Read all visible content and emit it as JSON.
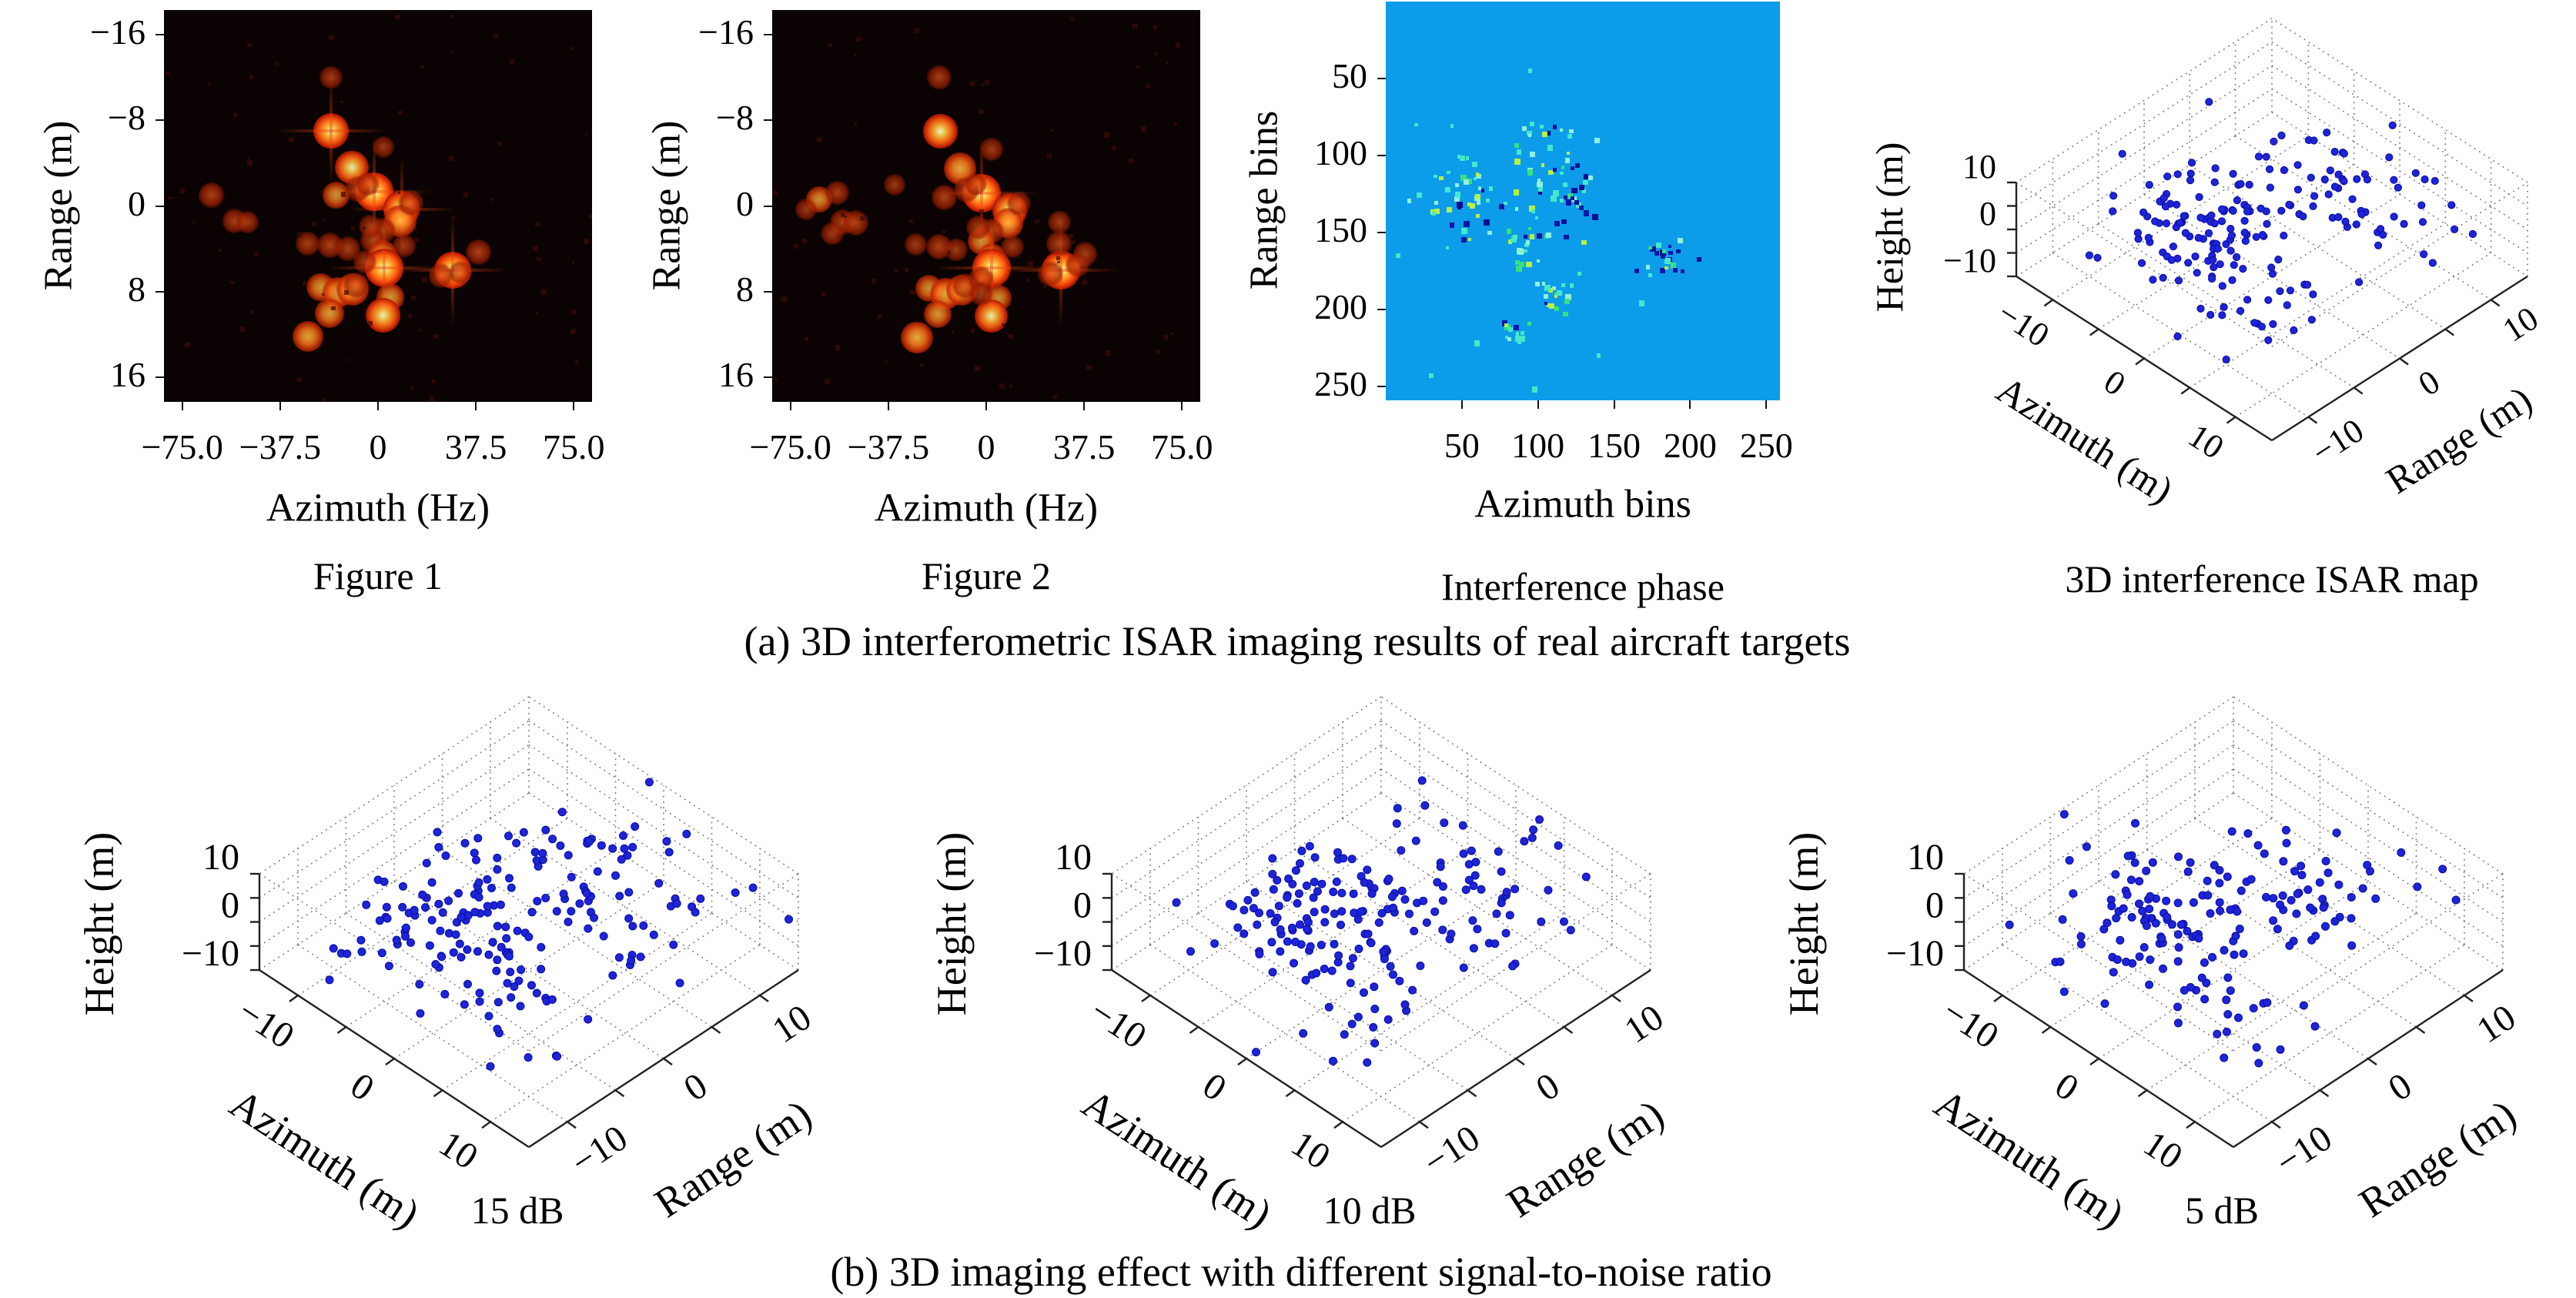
{
  "captions": {
    "a": "(a) 3D interferometric ISAR imaging results of real aircraft targets",
    "b": "(b) 3D imaging effect with different signal-to-noise ratio"
  },
  "chart_data": [
    {
      "id": "fig1",
      "type": "heatmap",
      "title": "Figure 1",
      "xlabel": "Azimuth (Hz)",
      "ylabel": "Range (m)",
      "xticks": [
        "−75.0",
        "−37.5",
        "0",
        "37.5",
        "75.0"
      ],
      "xtick_values": [
        -75,
        -37.5,
        0,
        37.5,
        75
      ],
      "yticks": [
        "−16",
        "−8",
        "0",
        "8",
        "16"
      ],
      "ytick_values": [
        -16,
        -8,
        0,
        8,
        16
      ],
      "xlim": [
        -82,
        82
      ],
      "ylim": [
        -18.3,
        18.3
      ],
      "colormap": "hot",
      "background": "#0b0303",
      "noise_seed": 3,
      "spots": [
        [
          -18,
          -7,
          0.9
        ],
        [
          -10,
          -3.6,
          0.8
        ],
        [
          -1.5,
          -1.3,
          1
        ],
        [
          -16,
          -1,
          0.55
        ],
        [
          9,
          0.3,
          0.9
        ],
        [
          8.6,
          1.4,
          0.75
        ],
        [
          1.8,
          2.3,
          0.5
        ],
        [
          -2,
          3.2,
          0.5
        ],
        [
          1.8,
          4.6,
          0.65
        ],
        [
          2.4,
          5.8,
          1
        ],
        [
          28.6,
          6,
          0.95
        ],
        [
          38.6,
          4.3,
          0.5
        ],
        [
          -27,
          3.5,
          0.45
        ],
        [
          -18.3,
          3.7,
          0.5
        ],
        [
          -22,
          7.6,
          0.6
        ],
        [
          -15.4,
          8.1,
          0.7
        ],
        [
          -9.7,
          7.8,
          0.75
        ],
        [
          4.7,
          8.5,
          0.6
        ],
        [
          -18.6,
          10,
          0.65
        ],
        [
          1.8,
          10.2,
          0.85
        ],
        [
          -26.8,
          12.2,
          0.7
        ],
        [
          -64,
          -1,
          0.5
        ],
        [
          -55,
          1.4,
          0.45
        ],
        [
          -50,
          1.5,
          0.4
        ],
        [
          -7.7,
          -1.6,
          0.5
        ],
        [
          -3.9,
          -2,
          0.45
        ],
        [
          12.4,
          -0.3,
          0.5
        ],
        [
          -3,
          1.9,
          0.4
        ],
        [
          -8.3,
          7.4,
          0.5
        ],
        [
          -18,
          -12,
          0.4
        ],
        [
          -11.5,
          4,
          0.45
        ],
        [
          10,
          3.7,
          0.4
        ],
        [
          2,
          -5.5,
          0.35
        ],
        [
          -5,
          5.2,
          0.4
        ],
        [
          24,
          6.5,
          0.45
        ],
        [
          31.5,
          6.2,
          0.4
        ]
      ]
    },
    {
      "id": "fig2",
      "type": "heatmap",
      "title": "Figure 2",
      "xlabel": "Azimuth (Hz)",
      "ylabel": "Range (m)",
      "xticks": [
        "−75.0",
        "−37.5",
        "0",
        "37.5",
        "75.0"
      ],
      "xtick_values": [
        -75,
        -37.5,
        0,
        37.5,
        75
      ],
      "yticks": [
        "−16",
        "−8",
        "0",
        "8",
        "16"
      ],
      "ytick_values": [
        -16,
        -8,
        0,
        8,
        16
      ],
      "xlim": [
        -82,
        82
      ],
      "ylim": [
        -18.3,
        18.3
      ],
      "colormap": "hot",
      "background": "#0b0303",
      "noise_seed": 9,
      "spots": [
        [
          -17.5,
          -7,
          0.85
        ],
        [
          -10,
          -3.5,
          0.75
        ],
        [
          -1.8,
          -1.2,
          1
        ],
        [
          -16,
          -0.8,
          0.5
        ],
        [
          9,
          0.4,
          0.85
        ],
        [
          8.4,
          1.6,
          0.7
        ],
        [
          2,
          2.4,
          0.5
        ],
        [
          -2,
          3.3,
          0.55
        ],
        [
          2,
          4.8,
          0.6
        ],
        [
          2.2,
          5.8,
          1
        ],
        [
          28.5,
          6,
          1
        ],
        [
          38,
          4.5,
          0.45
        ],
        [
          -27,
          3.6,
          0.4
        ],
        [
          -18,
          3.8,
          0.5
        ],
        [
          -22,
          7.7,
          0.55
        ],
        [
          -15.5,
          8.2,
          0.75
        ],
        [
          -9.5,
          7.9,
          0.7
        ],
        [
          4.5,
          8.6,
          0.55
        ],
        [
          -18.5,
          10.1,
          0.6
        ],
        [
          2,
          10.3,
          0.8
        ],
        [
          -26.5,
          12.3,
          0.75
        ],
        [
          -64,
          -0.6,
          0.55
        ],
        [
          -57,
          -1.2,
          0.45
        ],
        [
          -55,
          1.5,
          0.5
        ],
        [
          -50,
          1.6,
          0.5
        ],
        [
          -69,
          0.3,
          0.35
        ],
        [
          -59,
          2.6,
          0.4
        ],
        [
          -7.5,
          -1.5,
          0.5
        ],
        [
          -4,
          -2,
          0.4
        ],
        [
          12.5,
          -0.2,
          0.45
        ],
        [
          -3,
          2,
          0.45
        ],
        [
          -8,
          7.5,
          0.5
        ],
        [
          -18,
          -12,
          0.45
        ],
        [
          -11.5,
          4.1,
          0.4
        ],
        [
          10,
          3.8,
          0.4
        ],
        [
          2,
          -5.3,
          0.4
        ],
        [
          28,
          3.5,
          0.5
        ],
        [
          28,
          1.5,
          0.4
        ],
        [
          35,
          5.5,
          0.45
        ],
        [
          -2,
          6.8,
          0.5
        ],
        [
          -2,
          8.2,
          0.45
        ],
        [
          -35,
          -2,
          0.35
        ],
        [
          24.5,
          6.3,
          0.5
        ]
      ]
    },
    {
      "id": "phase",
      "type": "heatmap",
      "title": "Interference phase",
      "xlabel": "Azimuth bins",
      "ylabel": "Range bins",
      "xticks": [
        "50",
        "100",
        "150",
        "200",
        "250"
      ],
      "xtick_values": [
        50,
        100,
        150,
        200,
        250
      ],
      "yticks": [
        "50",
        "100",
        "150",
        "200",
        "250"
      ],
      "ytick_values": [
        50,
        100,
        150,
        200,
        250
      ],
      "xlim": [
        0,
        259
      ],
      "ylim": [
        0,
        259
      ],
      "background": "#0d9ce9",
      "palette": [
        "#45e8c8",
        "#8ef2da",
        "#b6f046",
        "#38e07e",
        "#0a16a6",
        "#071090"
      ],
      "weights": [
        0.38,
        0.2,
        0.18,
        0.12,
        0.07,
        0.05
      ],
      "dark_weights": [
        0.1,
        0.05,
        0.05,
        0.05,
        0.4,
        0.35
      ],
      "seed": 13,
      "clusters": [
        [
          50,
          125,
          14,
          16,
          48,
          0
        ],
        [
          103,
          84,
          7,
          4,
          10,
          0
        ],
        [
          108,
          115,
          12,
          14,
          36,
          0
        ],
        [
          92,
          160,
          9,
          10,
          26,
          0
        ],
        [
          112,
          188,
          9,
          9,
          20,
          0
        ],
        [
          85,
          214,
          7,
          4,
          14,
          0
        ],
        [
          182,
          162,
          11,
          7,
          22,
          1
        ],
        [
          128,
          128,
          6,
          14,
          16,
          1
        ]
      ],
      "singles": [
        [
          95,
          45
        ],
        [
          8,
          165
        ],
        [
          30,
          243
        ],
        [
          98,
          252
        ],
        [
          140,
          230
        ],
        [
          20,
          80
        ],
        [
          60,
          222
        ],
        [
          168,
          196
        ]
      ]
    },
    {
      "id": "iso3d",
      "type": "scatter3d",
      "title": "3D interference ISAR map",
      "xlabel": "Azimuth (m)",
      "ylabel": "Range (m)",
      "zlabel": "Height (m)",
      "xticks": [
        "−10",
        "0",
        "10"
      ],
      "yticks": [
        "−10",
        "0",
        "10"
      ],
      "zticks": [
        "10",
        "0",
        "−10"
      ],
      "tick_values": [
        -10,
        0,
        10
      ],
      "grid_values": [
        -10,
        -5,
        0,
        5,
        10
      ],
      "xlim": [
        -14,
        14
      ],
      "ylim": [
        -14,
        14
      ],
      "zlim": [
        -10,
        10
      ],
      "point_color": "#1e24d8",
      "seed": 7,
      "clusters": [
        [
          -3,
          -2,
          1,
          3.2,
          3.8,
          2.8,
          64
        ],
        [
          3,
          6.5,
          2,
          3.8,
          3.8,
          2.6,
          46
        ],
        [
          -7,
          -4,
          -2.5,
          2.6,
          2.8,
          2.6,
          28
        ],
        [
          4,
          -5.5,
          -3.5,
          3.4,
          2.6,
          2.2,
          26
        ],
        [
          0,
          1,
          0,
          7.5,
          6.5,
          4.5,
          30
        ]
      ],
      "outliers": [
        [
          -11,
          -9,
          -8
        ],
        [
          -10.5,
          -8.6,
          -8.4
        ],
        [
          5,
          -10,
          -9
        ],
        [
          12,
          8,
          5
        ],
        [
          13,
          9,
          4
        ]
      ]
    },
    {
      "id": "snr15",
      "type": "scatter3d",
      "title": "15 dB",
      "xlabel": "Azimuth (m)",
      "ylabel": "Range (m)",
      "zlabel": "Height (m)",
      "xticks": [
        "−10",
        "0",
        "10"
      ],
      "yticks": [
        "−10",
        "0",
        "10"
      ],
      "zticks": [
        "10",
        "0",
        "−10"
      ],
      "tick_values": [
        -10,
        0,
        10
      ],
      "grid_values": [
        -10,
        -5,
        0,
        5,
        10
      ],
      "xlim": [
        -14,
        14
      ],
      "ylim": [
        -14,
        14
      ],
      "zlim": [
        -10,
        10
      ],
      "point_color": "#1e24d8",
      "seed": 11,
      "clusters": [
        [
          -3,
          -2,
          1,
          3.2,
          3.8,
          2.8,
          64
        ],
        [
          3,
          6.5,
          2,
          3.8,
          3.8,
          2.6,
          46
        ],
        [
          -7,
          -4,
          -2.5,
          2.6,
          2.8,
          2.6,
          28
        ],
        [
          4,
          -5.5,
          -3.5,
          3.4,
          2.6,
          2.2,
          26
        ],
        [
          0,
          1,
          0,
          7.5,
          6.5,
          4.5,
          30
        ]
      ],
      "outliers": [
        [
          -10.5,
          -9,
          -8.5
        ],
        [
          -10.2,
          -8.7,
          -8.6
        ],
        [
          6,
          -10,
          -9
        ]
      ]
    },
    {
      "id": "snr10",
      "type": "scatter3d",
      "title": "10 dB",
      "xlabel": "Azimuth (m)",
      "ylabel": "Range (m)",
      "zlabel": "Height (m)",
      "xticks": [
        "−10",
        "0",
        "10"
      ],
      "yticks": [
        "−10",
        "0",
        "10"
      ],
      "zticks": [
        "10",
        "0",
        "−10"
      ],
      "tick_values": [
        -10,
        0,
        10
      ],
      "grid_values": [
        -10,
        -5,
        0,
        5,
        10
      ],
      "xlim": [
        -14,
        14
      ],
      "ylim": [
        -14,
        14
      ],
      "zlim": [
        -10,
        10
      ],
      "point_color": "#1e24d8",
      "seed": 23,
      "clusters": [
        [
          -3,
          -1.5,
          1,
          3.2,
          3.8,
          2.8,
          62
        ],
        [
          3,
          6.5,
          2,
          3.8,
          3.8,
          2.6,
          46
        ],
        [
          -7,
          -4,
          -2.5,
          2.6,
          2.8,
          2.6,
          28
        ],
        [
          4,
          -5.5,
          -3.5,
          3.4,
          2.6,
          2.2,
          26
        ],
        [
          0,
          1,
          0,
          7.5,
          6.5,
          4.5,
          30
        ]
      ],
      "outliers": [
        [
          -10.8,
          -9,
          -8.5
        ],
        [
          5,
          -10,
          -9.2
        ],
        [
          11,
          8,
          4
        ]
      ]
    },
    {
      "id": "snr5",
      "type": "scatter3d",
      "title": "5 dB",
      "xlabel": "Azimuth (m)",
      "ylabel": "Range (m)",
      "zlabel": "Height (m)",
      "xticks": [
        "−10",
        "0",
        "10"
      ],
      "yticks": [
        "−10",
        "0",
        "10"
      ],
      "zticks": [
        "10",
        "0",
        "−10"
      ],
      "tick_values": [
        -10,
        0,
        10
      ],
      "grid_values": [
        -10,
        -5,
        0,
        5,
        10
      ],
      "xlim": [
        -14,
        14
      ],
      "ylim": [
        -14,
        14
      ],
      "zlim": [
        -10,
        10
      ],
      "point_color": "#1e24d8",
      "seed": 37,
      "clusters": [
        [
          -3,
          -2,
          1,
          3,
          3.6,
          2.8,
          58
        ],
        [
          3,
          6,
          2,
          3.6,
          3.6,
          2.6,
          42
        ],
        [
          -7,
          -4,
          -2.5,
          2.6,
          2.8,
          2.6,
          26
        ],
        [
          4,
          -5.5,
          -3.5,
          3.2,
          2.5,
          2.2,
          22
        ],
        [
          0,
          1,
          0,
          7,
          6.5,
          4.5,
          26
        ]
      ],
      "outliers": [
        [
          -9.5,
          -9,
          -9
        ],
        [
          -9.2,
          -8.8,
          -8.8
        ]
      ]
    }
  ]
}
